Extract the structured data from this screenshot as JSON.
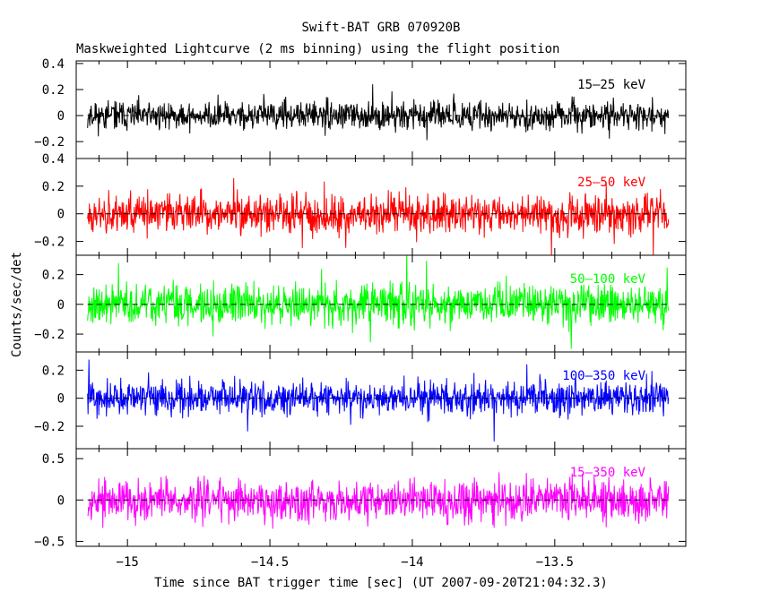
{
  "title": "Swift-BAT GRB 070920B",
  "subtitle": "Maskweighted Lightcurve (2 ms binning) using the flight position",
  "xlabel": "Time since BAT trigger time [sec] (UT 2007-09-20T21:04:32.3)",
  "ylabel": "Counts/sec/det",
  "chart_data": {
    "type": "line",
    "title": "Swift-BAT GRB 070920B",
    "subtitle": "Maskweighted Lightcurve (2 ms binning) using the flight position",
    "xlabel": "Time since BAT trigger time [sec] (UT 2007-09-20T21:04:32.3)",
    "ylabel": "Counts/sec/det",
    "xlim": [
      -15.18,
      -13.04
    ],
    "x_range_of_data": [
      -15.14,
      -13.1
    ],
    "x_ticks": [
      -15,
      -14.5,
      -14,
      -13.5
    ],
    "x_tick_labels": [
      "−15",
      "−14.5",
      "−14",
      "−13.5"
    ],
    "grid": false,
    "zero_line": "dashed",
    "panels": [
      {
        "band": "15–25 keV",
        "color": "#000000",
        "ylim": [
          -0.33,
          0.42
        ],
        "y_ticks": [
          -0.2,
          0,
          0.2,
          0.4
        ],
        "y_tick_labels": [
          "−0.2",
          "0",
          "0.2",
          "0.4"
        ],
        "noise_amplitude": 0.18,
        "seed": 11
      },
      {
        "band": "25–50 keV",
        "color": "#ff0000",
        "ylim": [
          -0.3,
          0.4
        ],
        "y_ticks": [
          -0.2,
          0,
          0.2,
          0.4
        ],
        "y_tick_labels": [
          "−0.2",
          "0",
          "0.2",
          "0.4"
        ],
        "noise_amplitude": 0.24,
        "seed": 23
      },
      {
        "band": "50–100 keV",
        "color": "#00ff00",
        "ylim": [
          -0.32,
          0.33
        ],
        "y_ticks": [
          -0.2,
          0,
          0.2
        ],
        "y_tick_labels": [
          "−0.2",
          "0",
          "0.2"
        ],
        "noise_amplitude": 0.24,
        "seed": 37
      },
      {
        "band": "100–350 keV",
        "color": "#0000ff",
        "ylim": [
          -0.36,
          0.33
        ],
        "y_ticks": [
          -0.2,
          0,
          0.2
        ],
        "y_tick_labels": [
          "−0.2",
          "0",
          "0.2"
        ],
        "noise_amplitude": 0.2,
        "seed": 41
      },
      {
        "band": "15–350 keV",
        "color": "#ff00ff",
        "ylim": [
          -0.56,
          0.62
        ],
        "y_ticks": [
          -0.5,
          0,
          0.5
        ],
        "y_tick_labels": [
          "−0.5",
          "0",
          "0.5"
        ],
        "noise_amplitude": 0.42,
        "seed": 53
      }
    ]
  }
}
